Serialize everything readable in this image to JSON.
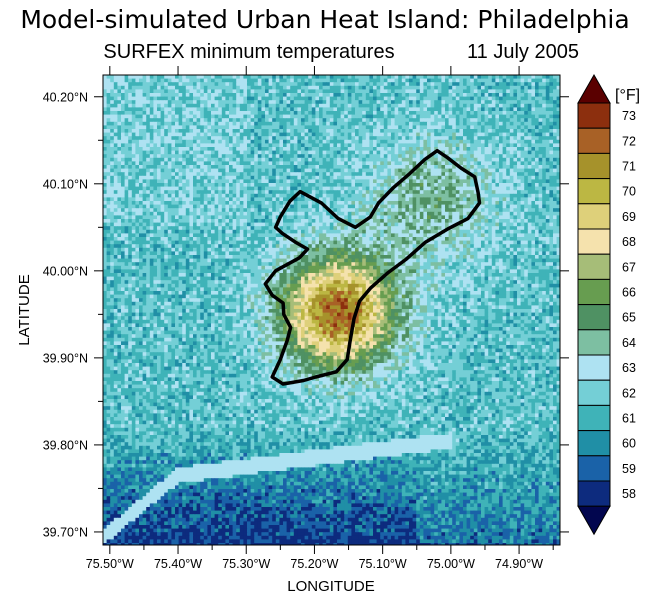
{
  "chart_data": {
    "type": "heatmap",
    "title": "Model-simulated Urban Heat Island: Philadelphia",
    "subtitle_left": "SURFEX minimum temperatures",
    "subtitle_right": "11 July 2005",
    "xlabel": "LONGITUDE",
    "ylabel": "LATITUDE",
    "x_ticks": [
      {
        "value": -75.5,
        "label": "75.50°W"
      },
      {
        "value": -75.4,
        "label": "75.40°W"
      },
      {
        "value": -75.3,
        "label": "75.30°W"
      },
      {
        "value": -75.2,
        "label": "75.20°W"
      },
      {
        "value": -75.1,
        "label": "75.10°W"
      },
      {
        "value": -75.0,
        "label": "75.00°W"
      },
      {
        "value": -74.9,
        "label": "74.90°W"
      }
    ],
    "y_ticks": [
      {
        "value": 39.7,
        "label": "39.70°N"
      },
      {
        "value": 39.8,
        "label": "39.80°N"
      },
      {
        "value": 39.9,
        "label": "39.90°N"
      },
      {
        "value": 40.0,
        "label": "40.00°N"
      },
      {
        "value": 40.1,
        "label": "40.10°N"
      },
      {
        "value": 40.2,
        "label": "40.20°N"
      }
    ],
    "xlim": [
      -75.51,
      -74.84
    ],
    "ylim": [
      39.685,
      40.225
    ],
    "colorbar": {
      "unit": "[°F]",
      "levels": [
        58,
        59,
        60,
        61,
        62,
        63,
        64,
        65,
        66,
        67,
        68,
        69,
        70,
        71,
        72,
        73
      ],
      "colors": [
        "#0d2b7e",
        "#1a62a8",
        "#208fa6",
        "#3fb3b8",
        "#74cfd6",
        "#aee2f2",
        "#7dbfa2",
        "#4f9163",
        "#679d50",
        "#a6bd78",
        "#f5e2ad",
        "#ded07a",
        "#bcb743",
        "#a6922b",
        "#a86126",
        "#8c2f0e"
      ],
      "under_color": "#02064f",
      "over_color": "#5a0000"
    },
    "field_description_values": {
      "city_core_min_temp": 73,
      "rural_low_min_temp": 58,
      "range": [
        58,
        73
      ]
    }
  }
}
